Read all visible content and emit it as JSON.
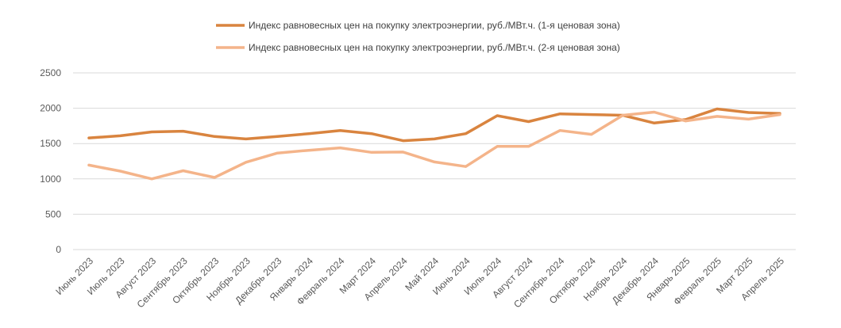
{
  "chart_data": {
    "type": "line",
    "title": "",
    "xlabel": "",
    "ylabel": "",
    "ylim": [
      0,
      2500
    ],
    "yticks": [
      0,
      500,
      1000,
      1500,
      2000,
      2500
    ],
    "grid": true,
    "legend_position": "top",
    "categories": [
      "Июнь 2023",
      "Июль 2023",
      "Август 2023",
      "Сентябрь 2023",
      "Октябрь 2023",
      "Ноябрь 2023",
      "Декабрь 2023",
      "Январь 2024",
      "Февраль 2024",
      "Март 2024",
      "Апрель 2024",
      "Май 2024",
      "Июнь 2024",
      "Июль 2024",
      "Август 2024",
      "Сентябрь 2024",
      "Октябрь 2024",
      "Ноябрь 2024",
      "Декабрь 2024",
      "Январь 2025",
      "Февраль 2025",
      "Март 2025",
      "Апрель 2025"
    ],
    "series": [
      {
        "name": "Индекс равновесных цен на покупку электроэнергии, руб./МВт.ч. (1-я ценовая зона)",
        "color": "#d9843f",
        "values": [
          1580,
          1610,
          1665,
          1675,
          1600,
          1565,
          1600,
          1640,
          1685,
          1640,
          1540,
          1565,
          1640,
          1895,
          1810,
          1920,
          1910,
          1900,
          1790,
          1840,
          1990,
          1940,
          1925
        ]
      },
      {
        "name": "Индекс равновесных цен на покупку электроэнергии, руб./МВт.ч. (2-я ценовая зона)",
        "color": "#f4b48a",
        "values": [
          1195,
          1110,
          1000,
          1115,
          1020,
          1235,
          1365,
          1405,
          1440,
          1375,
          1380,
          1240,
          1175,
          1460,
          1460,
          1685,
          1630,
          1900,
          1945,
          1820,
          1885,
          1845,
          1910
        ]
      }
    ]
  }
}
